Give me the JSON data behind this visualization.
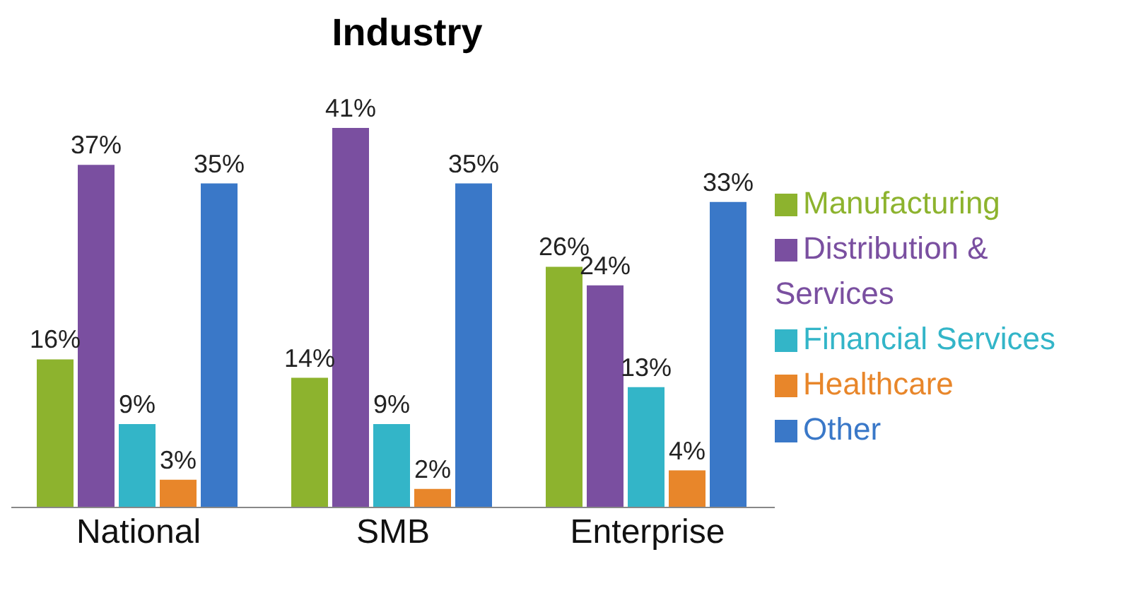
{
  "chart_data": {
    "type": "bar",
    "title": "Industry",
    "categories": [
      "National",
      "SMB",
      "Enterprise"
    ],
    "series": [
      {
        "name": "Manufacturing",
        "color": "#8db32e",
        "values": [
          16,
          14,
          26
        ],
        "value_labels": [
          "16%",
          "14%",
          "26%"
        ]
      },
      {
        "name": "Distribution & Services",
        "color": "#7a4fa0",
        "values": [
          37,
          41,
          24
        ],
        "value_labels": [
          "37%",
          "41%",
          "24%"
        ]
      },
      {
        "name": "Financial Services",
        "color": "#33b5c8",
        "values": [
          9,
          9,
          13
        ],
        "value_labels": [
          "9%",
          "9%",
          "13%"
        ]
      },
      {
        "name": "Healthcare",
        "color": "#e8862a",
        "values": [
          3,
          2,
          4
        ],
        "value_labels": [
          "3%",
          "2%",
          "4%"
        ]
      },
      {
        "name": "Other",
        "color": "#3a78c8",
        "values": [
          35,
          35,
          33
        ],
        "value_labels": [
          "35%",
          "35%",
          "33%"
        ]
      }
    ],
    "grid": false,
    "legend": "right"
  }
}
